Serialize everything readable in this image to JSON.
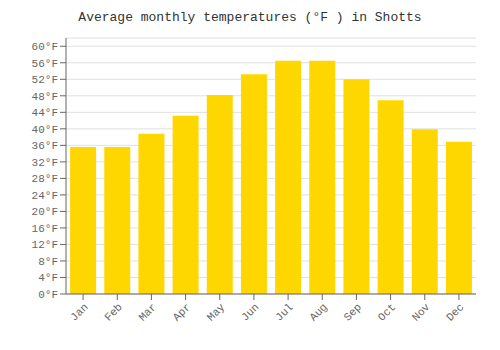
{
  "chart_data": {
    "type": "bar",
    "title": "Average monthly temperatures (°F ) in Shotts",
    "categories": [
      "Jan",
      "Feb",
      "Mar",
      "Apr",
      "May",
      "Jun",
      "Jul",
      "Aug",
      "Sep",
      "Oct",
      "Nov",
      "Dec"
    ],
    "values": [
      35.6,
      35.6,
      38.8,
      43.2,
      48.2,
      53.2,
      56.5,
      56.5,
      52.0,
      46.9,
      39.9,
      36.9
    ],
    "color": "#FFD700",
    "ylim": [
      0,
      62
    ],
    "yticks": [
      {
        "value": 0,
        "label": "0°F"
      },
      {
        "value": 4,
        "label": "4°F"
      },
      {
        "value": 8,
        "label": "8°F"
      },
      {
        "value": 12,
        "label": "12°F"
      },
      {
        "value": 16,
        "label": "16°F"
      },
      {
        "value": 20,
        "label": "20°F"
      },
      {
        "value": 24,
        "label": "24°F"
      },
      {
        "value": 28,
        "label": "28°F"
      },
      {
        "value": 32,
        "label": "32°F"
      },
      {
        "value": 36,
        "label": "36°F"
      },
      {
        "value": 40,
        "label": "40°F"
      },
      {
        "value": 44,
        "label": "44°F"
      },
      {
        "value": 48,
        "label": "48°F"
      },
      {
        "value": 52,
        "label": "52°F"
      },
      {
        "value": 56,
        "label": "56°F"
      },
      {
        "value": 60,
        "label": "60°F"
      }
    ],
    "grid": true
  }
}
